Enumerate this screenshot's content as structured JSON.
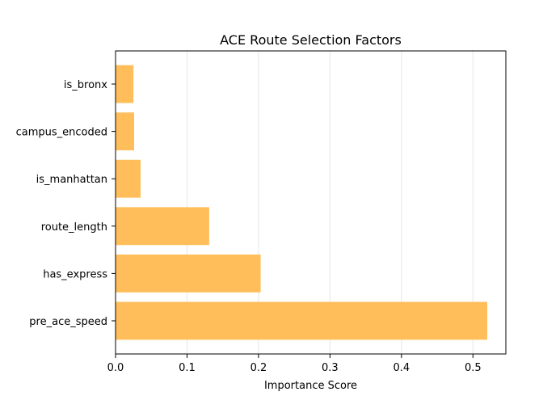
{
  "chart_data": {
    "type": "bar",
    "orientation": "horizontal",
    "title": "ACE Route Selection Factors",
    "xlabel": "Importance Score",
    "ylabel": "",
    "categories": [
      "pre_ace_speed",
      "has_express",
      "route_length",
      "is_manhattan",
      "campus_encoded",
      "is_bronx"
    ],
    "values": [
      0.52,
      0.203,
      0.131,
      0.035,
      0.026,
      0.025
    ],
    "xlim": [
      0,
      0.546
    ],
    "xticks": [
      "0.0",
      "0.1",
      "0.2",
      "0.3",
      "0.4",
      "0.5"
    ],
    "grid": "vertical",
    "bar_color": "#ffbe5a"
  }
}
